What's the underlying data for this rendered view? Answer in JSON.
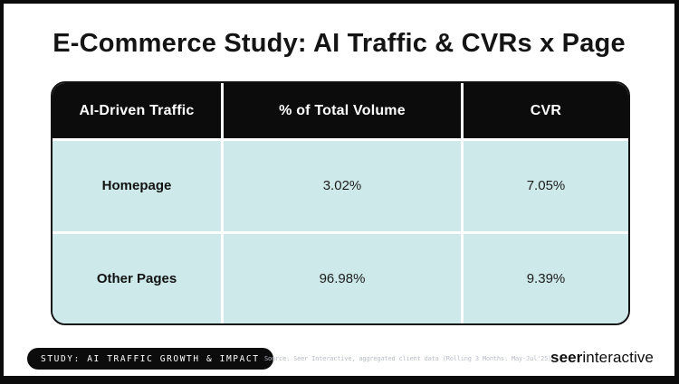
{
  "slide": {
    "title": "E-Commerce Study: AI Traffic & CVRs x Page"
  },
  "table": {
    "columns": [
      "AI-Driven Traffic",
      "% of Total Volume",
      "CVR"
    ],
    "rows": [
      {
        "label": "Homepage",
        "volume": "3.02%",
        "cvr": "7.05%"
      },
      {
        "label": "Other Pages",
        "volume": "96.98%",
        "cvr": "9.39%"
      }
    ]
  },
  "footer": {
    "badge": "STUDY: AI TRAFFIC GROWTH & IMPACT",
    "source": "Source: Seer Interactive, aggregated client data (Rolling 3 Months: May-Jul'25)",
    "logo": {
      "bold": "seer",
      "regular": "interactive"
    }
  },
  "colors": {
    "frame": "#0b0b0b",
    "table_header_bg": "#0c0c0c",
    "cell_bg": "#cde9e9",
    "divider": "#ffffff",
    "source_text": "#b9bdc6"
  },
  "chart_data": {
    "type": "table",
    "title": "E-Commerce Study: AI Traffic & CVRs x Page",
    "columns": [
      "AI-Driven Traffic",
      "% of Total Volume",
      "CVR"
    ],
    "rows": [
      [
        "Homepage",
        "3.02%",
        "7.05%"
      ],
      [
        "Other Pages",
        "96.98%",
        "9.39%"
      ]
    ]
  }
}
